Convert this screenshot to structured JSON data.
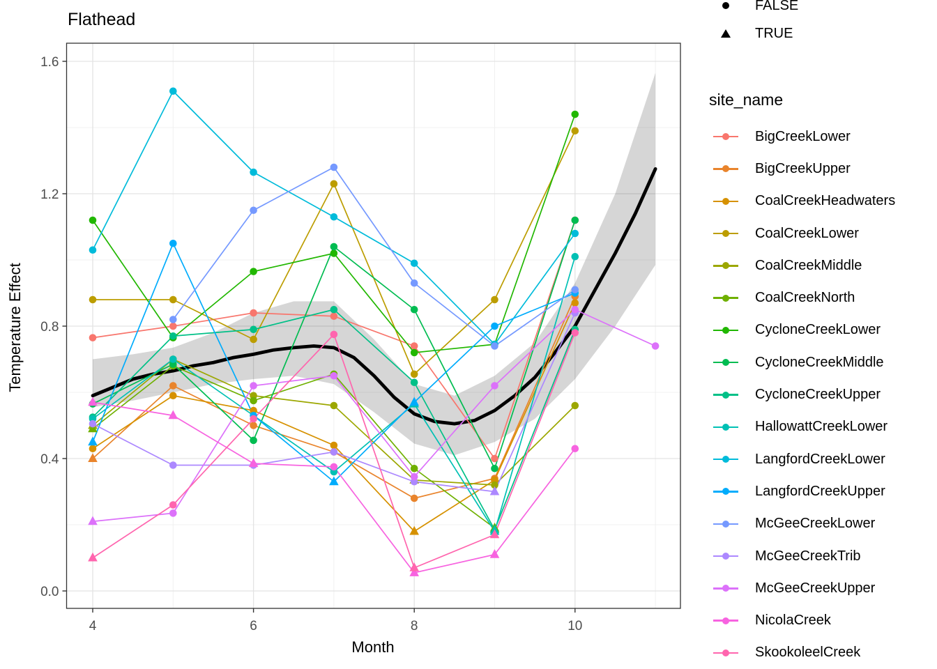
{
  "title": "Flathead",
  "axes": {
    "xlabel": "Month",
    "ylabel": "Temperature Effect",
    "x_ticks": [
      4,
      6,
      8,
      10
    ],
    "x_minor": [
      5,
      7,
      9,
      11
    ],
    "y_ticks": [
      "0.0",
      "0.4",
      "0.8",
      "1.2",
      "1.6"
    ],
    "y_tick_values": [
      0.0,
      0.4,
      0.8,
      1.2,
      1.6
    ],
    "y_minor": [
      0.2,
      0.6,
      1.0,
      1.4
    ]
  },
  "shape_legend": {
    "items": [
      {
        "label": "FALSE",
        "shape": "circle"
      },
      {
        "label": "TRUE",
        "shape": "triangle"
      }
    ]
  },
  "color_legend_title": "site_name",
  "style": {
    "grid_major": "#e3e3e3",
    "grid_minor": "#f0f0f0",
    "panel_border": "#333333",
    "tick_color": "#333333",
    "tick_label_color": "#4d4d4d",
    "ribbon_color": "#000000",
    "ribbon_opacity": 0.16,
    "smooth_color": "#000000"
  },
  "chart_data": {
    "type": "line",
    "title": "Flathead",
    "xlabel": "Month",
    "ylabel": "Temperature Effect",
    "xlim": [
      3.67,
      11.3
    ],
    "ylim": [
      -0.05,
      1.655
    ],
    "legend_position": "right",
    "grid": true,
    "shape_key": {
      "c": "FALSE (circle)",
      "t": "TRUE (triangle)"
    },
    "series": [
      {
        "name": "BigCreekLower",
        "color": "#F8766D",
        "points": [
          [
            4,
            0.765,
            "c"
          ],
          [
            5,
            0.8,
            "c"
          ],
          [
            6,
            0.84,
            "c"
          ],
          [
            7,
            0.83,
            "c"
          ],
          [
            8,
            0.74,
            "c"
          ],
          [
            9,
            0.4,
            "c"
          ],
          [
            10,
            1.12,
            "c"
          ]
        ]
      },
      {
        "name": "BigCreekUpper",
        "color": "#E9842C",
        "points": [
          [
            4,
            0.4,
            "t"
          ],
          [
            5,
            0.62,
            "c"
          ],
          [
            6,
            0.5,
            "c"
          ],
          [
            7,
            0.42,
            "c"
          ],
          [
            8,
            0.28,
            "c"
          ],
          [
            9,
            0.34,
            "c"
          ],
          [
            10,
            0.89,
            "c"
          ]
        ]
      },
      {
        "name": "CoalCreekHeadwaters",
        "color": "#D69100",
        "points": [
          [
            4,
            0.43,
            "c"
          ],
          [
            5,
            0.59,
            "c"
          ],
          [
            6,
            0.545,
            "c"
          ],
          [
            7,
            0.44,
            "c"
          ],
          [
            8,
            0.18,
            "t"
          ],
          [
            9,
            0.335,
            "c"
          ],
          [
            10,
            0.87,
            "c"
          ]
        ]
      },
      {
        "name": "CoalCreekLower",
        "color": "#BC9D00",
        "points": [
          [
            4,
            0.88,
            "c"
          ],
          [
            5,
            0.88,
            "c"
          ],
          [
            6,
            0.76,
            "c"
          ],
          [
            7,
            1.23,
            "c"
          ],
          [
            8,
            0.655,
            "c"
          ],
          [
            9,
            0.88,
            "c"
          ],
          [
            10,
            1.39,
            "c"
          ]
        ]
      },
      {
        "name": "CoalCreekMiddle",
        "color": "#9CA700",
        "points": [
          [
            4,
            0.5,
            "t"
          ],
          [
            5,
            0.7,
            "c"
          ],
          [
            6,
            0.59,
            "c"
          ],
          [
            7,
            0.56,
            "c"
          ],
          [
            8,
            0.335,
            "t"
          ],
          [
            9,
            0.32,
            "c"
          ],
          [
            10,
            0.56,
            "c"
          ]
        ]
      },
      {
        "name": "CoalCreekNorth",
        "color": "#6FB000",
        "points": [
          [
            4,
            0.49,
            "t"
          ],
          [
            5,
            0.68,
            "c"
          ],
          [
            6,
            0.575,
            "c"
          ],
          [
            7,
            0.655,
            "c"
          ],
          [
            8,
            0.37,
            "c"
          ],
          [
            9,
            0.19,
            "t"
          ]
        ]
      },
      {
        "name": "CycloneCreekLower",
        "color": "#21B700",
        "points": [
          [
            4,
            1.12,
            "c"
          ],
          [
            5,
            0.765,
            "c"
          ],
          [
            6,
            0.965,
            "c"
          ],
          [
            7,
            1.02,
            "c"
          ],
          [
            8,
            0.72,
            "c"
          ],
          [
            9,
            0.745,
            "c"
          ],
          [
            10,
            1.44,
            "c"
          ]
        ]
      },
      {
        "name": "CycloneCreekMiddle",
        "color": "#00BC51",
        "points": [
          [
            4,
            0.565,
            "c"
          ],
          [
            5,
            0.685,
            "c"
          ],
          [
            6,
            0.455,
            "c"
          ],
          [
            7,
            1.04,
            "c"
          ],
          [
            8,
            0.85,
            "c"
          ],
          [
            9,
            0.37,
            "c"
          ],
          [
            10,
            1.12,
            "c"
          ]
        ]
      },
      {
        "name": "CycloneCreekUpper",
        "color": "#00C087",
        "points": [
          [
            4,
            0.525,
            "c"
          ],
          [
            5,
            0.77,
            "c"
          ],
          [
            6,
            0.79,
            "c"
          ],
          [
            7,
            0.85,
            "c"
          ],
          [
            8,
            0.63,
            "c"
          ],
          [
            9,
            0.185,
            "t"
          ],
          [
            10,
            0.79,
            "c"
          ]
        ]
      },
      {
        "name": "HallowattCreekLower",
        "color": "#00C0B4",
        "points": [
          [
            4,
            0.52,
            "c"
          ],
          [
            5,
            0.7,
            "c"
          ],
          [
            7,
            0.36,
            "c"
          ],
          [
            8,
            0.565,
            "t"
          ],
          [
            9,
            0.18,
            "t"
          ],
          [
            10,
            1.01,
            "c"
          ]
        ]
      },
      {
        "name": "LangfordCreekLower",
        "color": "#00BBDA",
        "points": [
          [
            4,
            1.03,
            "c"
          ],
          [
            5,
            1.51,
            "c"
          ],
          [
            6,
            1.265,
            "c"
          ],
          [
            7,
            1.13,
            "c"
          ],
          [
            8,
            0.99,
            "c"
          ],
          [
            9,
            0.745,
            "c"
          ],
          [
            10,
            1.08,
            "c"
          ]
        ]
      },
      {
        "name": "LangfordCreekUpper",
        "color": "#00ACFC",
        "points": [
          [
            4,
            0.45,
            "t"
          ],
          [
            5,
            1.05,
            "c"
          ],
          [
            6,
            0.53,
            "c"
          ],
          [
            7,
            0.33,
            "t"
          ],
          [
            8,
            0.57,
            "t"
          ],
          [
            9,
            0.8,
            "c"
          ],
          [
            10,
            0.9,
            "c"
          ]
        ]
      },
      {
        "name": "McGeeCreekLower",
        "color": "#7599FF",
        "points": [
          [
            5,
            0.82,
            "c"
          ],
          [
            6,
            1.15,
            "c"
          ],
          [
            7,
            1.28,
            "c"
          ],
          [
            8,
            0.93,
            "c"
          ],
          [
            9,
            0.74,
            "c"
          ],
          [
            10,
            0.91,
            "c"
          ]
        ]
      },
      {
        "name": "McGeeCreekTrib",
        "color": "#AC88FF",
        "points": [
          [
            4,
            0.505,
            "c"
          ],
          [
            5,
            0.38,
            "c"
          ],
          [
            6,
            0.38,
            "c"
          ],
          [
            7,
            0.42,
            "c"
          ],
          [
            8,
            0.33,
            "c"
          ],
          [
            9,
            0.3,
            "t"
          ],
          [
            10,
            0.84,
            "c"
          ]
        ]
      },
      {
        "name": "McGeeCreekUpper",
        "color": "#DC71FA",
        "points": [
          [
            4,
            0.21,
            "t"
          ],
          [
            5,
            0.235,
            "c"
          ],
          [
            6,
            0.62,
            "c"
          ],
          [
            7,
            0.65,
            "c"
          ],
          [
            8,
            0.345,
            "c"
          ],
          [
            9,
            0.62,
            "c"
          ],
          [
            10,
            0.85,
            "c"
          ],
          [
            11,
            0.74,
            "c"
          ]
        ]
      },
      {
        "name": "NicolaCreek",
        "color": "#F763E0",
        "points": [
          [
            4,
            0.57,
            "t"
          ],
          [
            5,
            0.53,
            "t"
          ],
          [
            6,
            0.385,
            "t"
          ],
          [
            7,
            0.375,
            "c"
          ],
          [
            8,
            0.055,
            "t"
          ],
          [
            9,
            0.11,
            "t"
          ],
          [
            10,
            0.43,
            "c"
          ]
        ]
      },
      {
        "name": "SkookoleelCreek",
        "color": "#FF65AE",
        "points": [
          [
            4,
            0.1,
            "t"
          ],
          [
            5,
            0.26,
            "c"
          ],
          [
            6,
            0.52,
            "c"
          ],
          [
            7,
            0.775,
            "c"
          ],
          [
            8,
            0.07,
            "t"
          ],
          [
            9,
            0.17,
            "t"
          ],
          [
            10,
            0.78,
            "c"
          ]
        ]
      }
    ],
    "smooth_line": {
      "x": [
        4,
        4.25,
        4.5,
        4.75,
        5,
        5.25,
        5.5,
        5.75,
        6,
        6.25,
        6.5,
        6.75,
        7,
        7.25,
        7.5,
        7.75,
        8,
        8.25,
        8.5,
        8.75,
        9,
        9.25,
        9.5,
        9.75,
        10,
        10.25,
        10.5,
        10.75,
        11
      ],
      "y": [
        0.59,
        0.615,
        0.64,
        0.655,
        0.665,
        0.68,
        0.69,
        0.705,
        0.715,
        0.728,
        0.735,
        0.74,
        0.735,
        0.705,
        0.65,
        0.585,
        0.535,
        0.512,
        0.505,
        0.515,
        0.545,
        0.59,
        0.645,
        0.72,
        0.8,
        0.91,
        1.02,
        1.14,
        1.275
      ]
    },
    "ribbon": {
      "x": [
        4,
        4.5,
        5,
        5.5,
        6,
        6.5,
        7,
        7.5,
        8,
        8.5,
        9,
        9.5,
        10,
        10.5,
        11
      ],
      "lo": [
        0.555,
        0.575,
        0.6,
        0.625,
        0.64,
        0.65,
        0.625,
        0.54,
        0.445,
        0.41,
        0.45,
        0.52,
        0.64,
        0.8,
        0.985
      ],
      "hi": [
        0.7,
        0.715,
        0.735,
        0.78,
        0.84,
        0.875,
        0.875,
        0.76,
        0.625,
        0.59,
        0.65,
        0.75,
        0.93,
        1.2,
        1.565
      ]
    }
  }
}
